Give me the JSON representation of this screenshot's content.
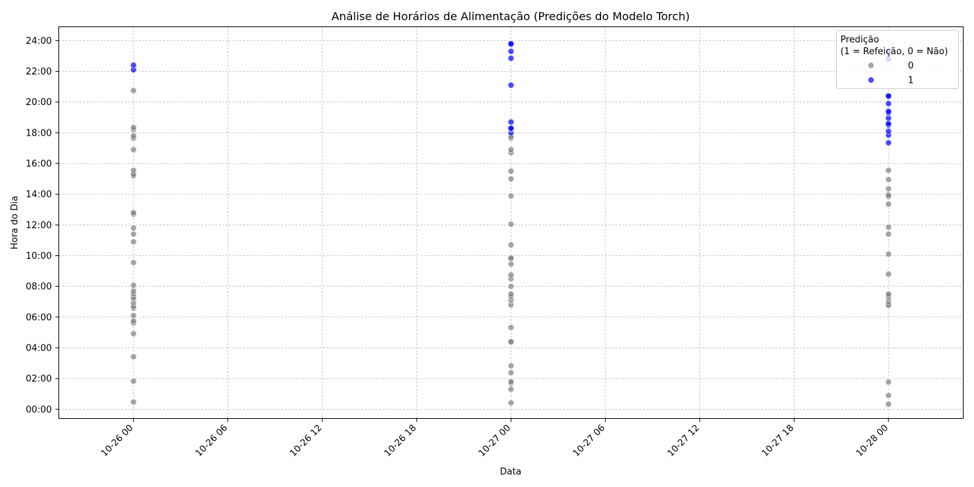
{
  "chart_data": {
    "type": "scatter",
    "title": "Análise de Horários de Alimentação (Predições do Modelo Torch)",
    "xlabel": "Data",
    "ylabel": "Hora do Dia",
    "xlim": [
      "2024-10-25 19:15",
      "2024-10-28 04:45"
    ],
    "ylim": [
      -0.6,
      24.9
    ],
    "x_ticks": [
      "10-26 00",
      "10-26 06",
      "10-26 12",
      "10-26 18",
      "10-27 00",
      "10-27 06",
      "10-27 12",
      "10-27 18",
      "10-28 00"
    ],
    "y_ticks": [
      "00:00",
      "02:00",
      "04:00",
      "06:00",
      "08:00",
      "10:00",
      "12:00",
      "14:00",
      "16:00",
      "18:00",
      "20:00",
      "22:00",
      "24:00"
    ],
    "grid": true,
    "legend": {
      "title": "Predição\n(1 = Refeição, 0 = Não)",
      "placement": "top-right",
      "entries": [
        {
          "label": "0",
          "color": "#808080"
        },
        {
          "label": "1",
          "color": "#0000ff"
        }
      ]
    },
    "series": [
      {
        "name": "0",
        "color": "#808080",
        "points": [
          {
            "x": "2024-10-26",
            "y": [
              0.47,
              1.83,
              3.42,
              4.92,
              5.62,
              5.75,
              6.1,
              6.58,
              6.7,
              6.95,
              7.2,
              7.28,
              7.5,
              7.7,
              8.07,
              9.55,
              10.9,
              11.4,
              11.8,
              12.7,
              12.8,
              15.2,
              15.3,
              15.55,
              16.9,
              17.65,
              17.8,
              18.2,
              18.35,
              20.75
            ]
          },
          {
            "x": "2024-10-27",
            "y": [
              0.42,
              1.3,
              1.7,
              1.8,
              2.38,
              2.83,
              4.35,
              4.4,
              5.32,
              6.8,
              7.1,
              7.35,
              7.5,
              8.0,
              8.5,
              8.75,
              9.45,
              9.8,
              9.85,
              10.7,
              12.05,
              13.88,
              15.0,
              15.5,
              16.7,
              16.9,
              17.65,
              17.75
            ]
          },
          {
            "x": "2024-10-28",
            "y": [
              0.33,
              0.9,
              1.77,
              6.75,
              6.8,
              7.0,
              7.25,
              7.4,
              7.5,
              8.8,
              10.1,
              11.4,
              11.85,
              13.35,
              13.85,
              13.95,
              14.35,
              14.95,
              15.55
            ]
          }
        ]
      },
      {
        "name": "1",
        "color": "#0000ff",
        "points": [
          {
            "x": "2024-10-26",
            "y": [
              22.1,
              22.4
            ]
          },
          {
            "x": "2024-10-27",
            "y": [
              18.0,
              18.25,
              18.3,
              18.7,
              21.1,
              22.85,
              23.3,
              23.75,
              23.8
            ]
          },
          {
            "x": "2024-10-28",
            "y": [
              17.35,
              17.85,
              18.1,
              18.5,
              18.6,
              18.95,
              19.3,
              19.4,
              19.9,
              20.35,
              20.4,
              22.8,
              23.3
            ]
          }
        ]
      }
    ]
  }
}
